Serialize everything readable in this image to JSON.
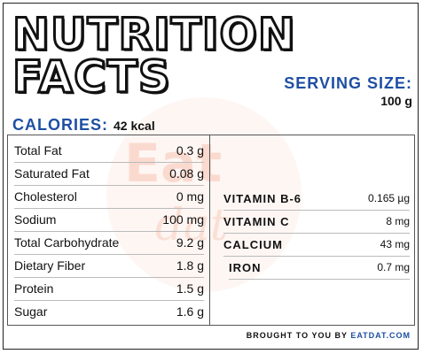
{
  "title": {
    "line1": "NUTRITION",
    "line2": "FACTS"
  },
  "serving": {
    "label": "SERVING SIZE:",
    "value": "100 g"
  },
  "calories": {
    "label": "CALORIES:",
    "value": "42 kcal"
  },
  "left_nutrients": [
    {
      "name": "Total Fat",
      "value": "0.3 g"
    },
    {
      "name": "Saturated Fat",
      "value": "0.08 g"
    },
    {
      "name": "Cholesterol",
      "value": "0 mg"
    },
    {
      "name": "Sodium",
      "value": "100 mg"
    },
    {
      "name": "Total Carbohydrate",
      "value": "9.2 g"
    },
    {
      "name": "Dietary Fiber",
      "value": "1.8 g"
    },
    {
      "name": "Protein",
      "value": "1.5 g"
    },
    {
      "name": "Sugar",
      "value": "1.6 g"
    }
  ],
  "right_nutrients": [
    {
      "name": "VITAMIN B-6",
      "value": "0.165 µg"
    },
    {
      "name": "VITAMIN C",
      "value": "8 mg"
    },
    {
      "name": "CALCIUM",
      "value": "43 mg"
    },
    {
      "name": "IRON",
      "value": "0.7 mg"
    }
  ],
  "footer": {
    "prefix": "BROUGHT TO YOU BY",
    "brand": "EATDAT.COM"
  },
  "watermark": {
    "line1": "Eat",
    "line2": "dat"
  },
  "colors": {
    "accent": "#1e4fa3",
    "watermark": "#eb7850"
  }
}
